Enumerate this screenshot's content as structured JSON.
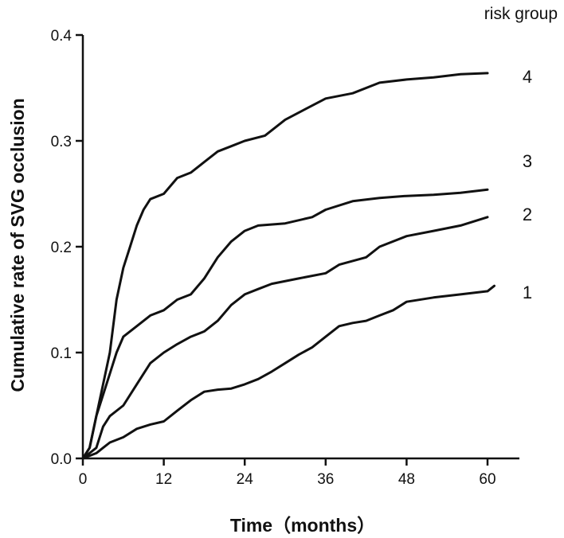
{
  "chart_data": {
    "type": "line",
    "title": "",
    "xlabel": "Time（months）",
    "ylabel": "Cumulative rate of SVG occlusion",
    "xlim": [
      0,
      60
    ],
    "ylim": [
      0,
      0.4
    ],
    "x_ticks": [
      0,
      12,
      24,
      36,
      48,
      60
    ],
    "y_ticks": [
      0.0,
      0.1,
      0.2,
      0.3,
      0.4
    ],
    "x_tick_labels": [
      "0",
      "12",
      "24",
      "36",
      "48",
      "60"
    ],
    "y_tick_labels": [
      "0.0",
      "0.1",
      "0.2",
      "0.3",
      "0.4"
    ],
    "legend_title": "risk group",
    "grid": false,
    "series": [
      {
        "name": "4",
        "points": [
          [
            0,
            0
          ],
          [
            1,
            0.01
          ],
          [
            2,
            0.04
          ],
          [
            3,
            0.07
          ],
          [
            4,
            0.1
          ],
          [
            5,
            0.15
          ],
          [
            6,
            0.18
          ],
          [
            7,
            0.2
          ],
          [
            8,
            0.22
          ],
          [
            9,
            0.235
          ],
          [
            10,
            0.245
          ],
          [
            12,
            0.25
          ],
          [
            14,
            0.265
          ],
          [
            16,
            0.27
          ],
          [
            18,
            0.28
          ],
          [
            20,
            0.29
          ],
          [
            22,
            0.295
          ],
          [
            24,
            0.3
          ],
          [
            27,
            0.305
          ],
          [
            30,
            0.32
          ],
          [
            33,
            0.33
          ],
          [
            36,
            0.34
          ],
          [
            40,
            0.345
          ],
          [
            44,
            0.355
          ],
          [
            48,
            0.358
          ],
          [
            52,
            0.36
          ],
          [
            56,
            0.363
          ],
          [
            60,
            0.364
          ]
        ]
      },
      {
        "name": "3",
        "points": [
          [
            0,
            0
          ],
          [
            1,
            0.01
          ],
          [
            2,
            0.04
          ],
          [
            3,
            0.06
          ],
          [
            4,
            0.08
          ],
          [
            5,
            0.1
          ],
          [
            6,
            0.115
          ],
          [
            8,
            0.125
          ],
          [
            10,
            0.135
          ],
          [
            12,
            0.14
          ],
          [
            14,
            0.15
          ],
          [
            16,
            0.155
          ],
          [
            18,
            0.17
          ],
          [
            20,
            0.19
          ],
          [
            22,
            0.205
          ],
          [
            24,
            0.215
          ],
          [
            26,
            0.22
          ],
          [
            30,
            0.222
          ],
          [
            34,
            0.228
          ],
          [
            36,
            0.235
          ],
          [
            40,
            0.243
          ],
          [
            44,
            0.246
          ],
          [
            48,
            0.248
          ],
          [
            52,
            0.249
          ],
          [
            56,
            0.251
          ],
          [
            60,
            0.254
          ]
        ]
      },
      {
        "name": "2",
        "points": [
          [
            0,
            0
          ],
          [
            2,
            0.01
          ],
          [
            3,
            0.03
          ],
          [
            4,
            0.04
          ],
          [
            6,
            0.05
          ],
          [
            8,
            0.07
          ],
          [
            10,
            0.09
          ],
          [
            12,
            0.1
          ],
          [
            14,
            0.108
          ],
          [
            16,
            0.115
          ],
          [
            18,
            0.12
          ],
          [
            20,
            0.13
          ],
          [
            22,
            0.145
          ],
          [
            24,
            0.155
          ],
          [
            26,
            0.16
          ],
          [
            28,
            0.165
          ],
          [
            32,
            0.17
          ],
          [
            36,
            0.175
          ],
          [
            38,
            0.183
          ],
          [
            42,
            0.19
          ],
          [
            44,
            0.2
          ],
          [
            48,
            0.21
          ],
          [
            52,
            0.215
          ],
          [
            56,
            0.22
          ],
          [
            60,
            0.228
          ]
        ]
      },
      {
        "name": "1",
        "points": [
          [
            0,
            0
          ],
          [
            2,
            0.005
          ],
          [
            4,
            0.015
          ],
          [
            6,
            0.02
          ],
          [
            8,
            0.028
          ],
          [
            10,
            0.032
          ],
          [
            12,
            0.035
          ],
          [
            14,
            0.045
          ],
          [
            16,
            0.055
          ],
          [
            18,
            0.063
          ],
          [
            20,
            0.065
          ],
          [
            22,
            0.066
          ],
          [
            24,
            0.07
          ],
          [
            26,
            0.075
          ],
          [
            28,
            0.082
          ],
          [
            30,
            0.09
          ],
          [
            32,
            0.098
          ],
          [
            34,
            0.105
          ],
          [
            36,
            0.115
          ],
          [
            38,
            0.125
          ],
          [
            40,
            0.128
          ],
          [
            42,
            0.13
          ],
          [
            44,
            0.135
          ],
          [
            46,
            0.14
          ],
          [
            48,
            0.148
          ],
          [
            52,
            0.152
          ],
          [
            56,
            0.155
          ],
          [
            60,
            0.158
          ],
          [
            61,
            0.163
          ]
        ]
      }
    ]
  }
}
